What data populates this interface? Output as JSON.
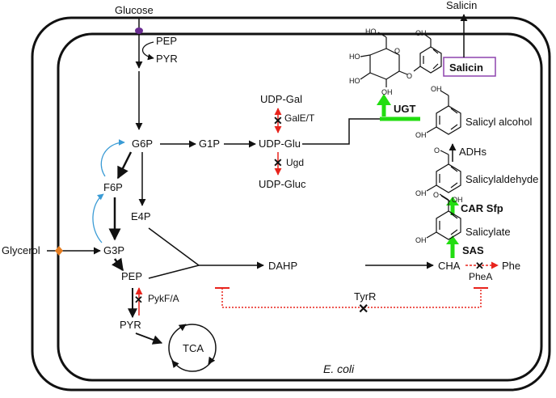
{
  "metabolites": {
    "glucose": "Glucose",
    "pep_top": "PEP",
    "pyr_top": "PYR",
    "g6p": "G6P",
    "g1p": "G1P",
    "udp_glu": "UDP-Glu",
    "udp_gal": "UDP-Gal",
    "udp_gluc": "UDP-Gluc",
    "f6p": "F6P",
    "e4p": "E4P",
    "glycerol": "Glycerol",
    "g3p": "G3P",
    "pep": "PEP",
    "pyr": "PYR",
    "tca": "TCA",
    "dahp": "DAHP",
    "cha": "CHA",
    "phe": "Phe",
    "salicylate": "Salicylate",
    "salicylaldehyde": "Salicylaldehyde",
    "salicyl_alcohol": "Salicyl alcohol",
    "salicin_in": "Salicin",
    "salicin_out": "Salicin"
  },
  "enzymes": {
    "galet": "GalE/T",
    "ugd": "Ugd",
    "pykfa": "PykF/A",
    "tyrr": "TyrR",
    "phea": "PheA",
    "ugt": "UGT",
    "sas": "SAS",
    "car_sfp": "CAR Sfp",
    "adhs": "ADHs"
  },
  "organism": "E. coli",
  "structure_atoms": {
    "ho": "HO",
    "oh": "OH",
    "o": "O"
  },
  "colors": {
    "line": "#111111",
    "knockout": "#e8231c",
    "overexpression": "#22dd11",
    "enzyme_label": "#1515cc",
    "salicin_box": "#8e44ad",
    "cycle_arrow": "#3a9bd5",
    "glucose_transporter": "#6a2c91",
    "glycerol_transporter": "#e67e22"
  }
}
